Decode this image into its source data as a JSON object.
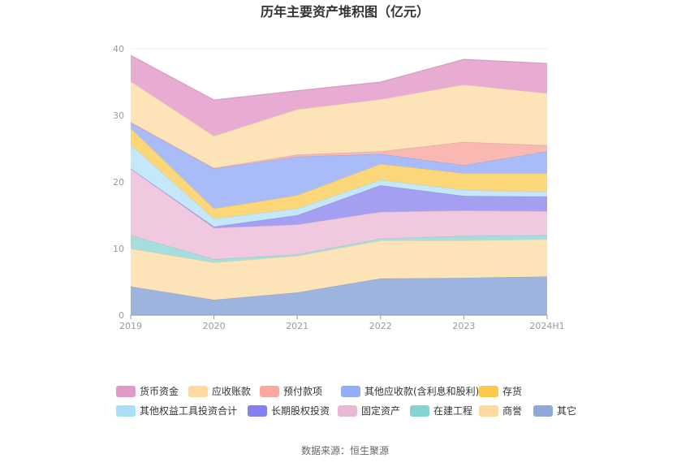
{
  "chart_data": {
    "type": "area",
    "stacked": true,
    "title": "历年主要资产堆积图（亿元）",
    "source": "数据来源：恒生聚源",
    "x": [
      "2019",
      "2020",
      "2021",
      "2022",
      "2023",
      "2024H1"
    ],
    "y_ticks": [
      "0",
      "10",
      "20",
      "30",
      "40"
    ],
    "ylim": [
      0,
      40
    ],
    "series": [
      {
        "name": "其它",
        "color": "#9db5de",
        "values": [
          4.3,
          2.3,
          3.4,
          5.5,
          5.6,
          5.8
        ]
      },
      {
        "name": "商誉",
        "color": "#fde3b8",
        "values": [
          5.7,
          5.6,
          5.5,
          5.7,
          5.6,
          5.6
        ]
      },
      {
        "name": "在建工程",
        "color": "#a5dedd",
        "values": [
          2.0,
          0.5,
          0.2,
          0.3,
          0.7,
          0.6
        ]
      },
      {
        "name": "固定资产",
        "color": "#f0c8df",
        "values": [
          10.0,
          4.7,
          4.5,
          4.0,
          3.8,
          3.6
        ]
      },
      {
        "name": "长期股权投资",
        "color": "#a49ff0",
        "values": [
          0.0,
          0.2,
          1.4,
          4.0,
          2.2,
          2.2
        ]
      },
      {
        "name": "其他权益工具投资合计",
        "color": "#c4e8f8",
        "values": [
          3.6,
          1.2,
          1.0,
          0.8,
          0.9,
          0.7
        ]
      },
      {
        "name": "存货",
        "color": "#fcd77a",
        "values": [
          2.5,
          1.5,
          2.0,
          2.4,
          2.5,
          2.8
        ]
      },
      {
        "name": "其他应收款(含利息和股利)",
        "color": "#a9bcf9",
        "values": [
          0.8,
          6.0,
          5.8,
          1.5,
          1.2,
          3.3
        ]
      },
      {
        "name": "预付款项",
        "color": "#f9b8b2",
        "values": [
          0.1,
          0.1,
          0.3,
          0.4,
          3.5,
          0.9
        ]
      },
      {
        "name": "应收账款",
        "color": "#fde3b8",
        "values": [
          6.1,
          4.8,
          6.8,
          7.8,
          8.6,
          7.8
        ]
      },
      {
        "name": "货币资金",
        "color": "#e8acd2",
        "values": [
          3.9,
          5.4,
          2.8,
          2.6,
          3.8,
          4.5
        ]
      }
    ],
    "legend": [
      {
        "name": "货币资金",
        "color": "#e199c8"
      },
      {
        "name": "应收账款",
        "color": "#fdd9a1"
      },
      {
        "name": "预付款项",
        "color": "#f9a89d"
      },
      {
        "name": "其他应收款(含利息和股利)",
        "color": "#94adf6"
      },
      {
        "name": "存货",
        "color": "#fbc94a"
      },
      {
        "name": "其他权益工具投资合计",
        "color": "#a9def7"
      },
      {
        "name": "长期股权投资",
        "color": "#8480ee"
      },
      {
        "name": "固定资产",
        "color": "#e8b7d6"
      },
      {
        "name": "在建工程",
        "color": "#86d4d2"
      },
      {
        "name": "商誉",
        "color": "#fdd9a1"
      },
      {
        "name": "其它",
        "color": "#8ea9d8"
      }
    ],
    "legend_position": "bottom",
    "grid": true
  }
}
